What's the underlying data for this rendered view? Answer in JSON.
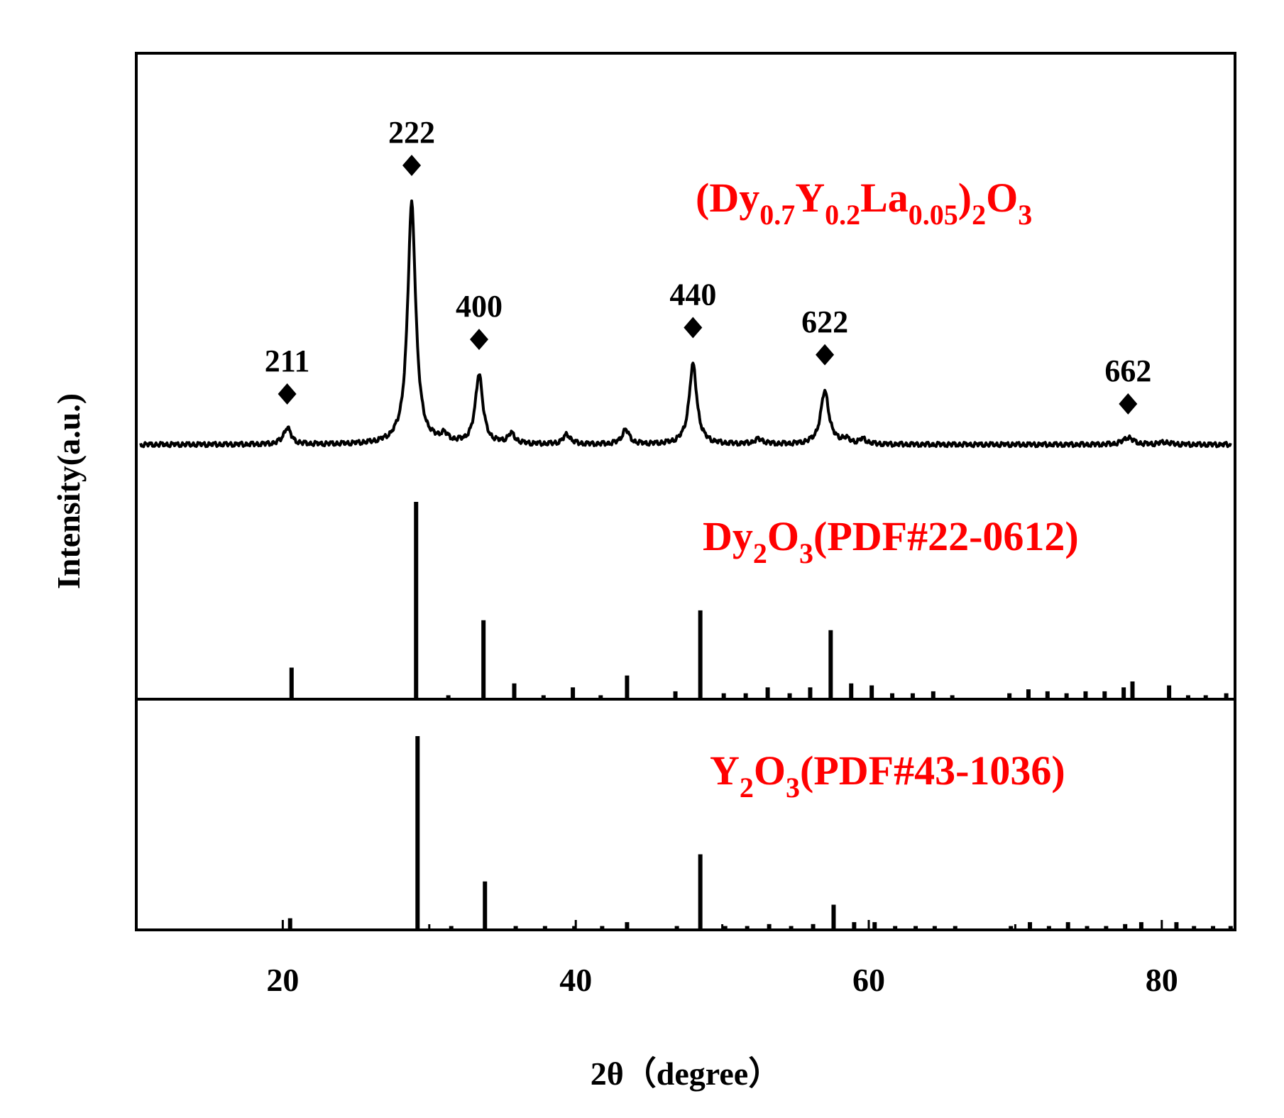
{
  "chart_data": {
    "type": "line",
    "xlabel": "2θ（degree）",
    "ylabel": "Intensity(a.u.)",
    "xlim": [
      10,
      85
    ],
    "xticks": [
      20,
      40,
      60,
      80
    ],
    "tick_labels": [
      "20",
      "40",
      "60",
      "80"
    ],
    "label_color": "#ff0000",
    "line_color": "#000000",
    "panels": [
      {
        "name": "measured",
        "label": {
          "base": "(Dy",
          "parts": [
            [
              "0.7",
              "sub"
            ],
            [
              "Y",
              "base"
            ],
            [
              "0.2",
              "sub"
            ],
            [
              "La",
              "base"
            ],
            [
              "0.05",
              "sub"
            ],
            [
              ")",
              "base"
            ],
            [
              "2",
              "sub"
            ],
            [
              "O",
              "base"
            ],
            [
              "3",
              "sub"
            ]
          ]
        },
        "type": "line",
        "baseline": 0.04,
        "peaks": [
          {
            "x": 20.3,
            "h": 0.07,
            "w": 0.3
          },
          {
            "x": 28.8,
            "h": 1.0,
            "w": 0.33
          },
          {
            "x": 31.0,
            "h": 0.03,
            "w": 0.3
          },
          {
            "x": 33.4,
            "h": 0.29,
            "w": 0.3
          },
          {
            "x": 35.6,
            "h": 0.04,
            "w": 0.3
          },
          {
            "x": 39.4,
            "h": 0.04,
            "w": 0.3
          },
          {
            "x": 43.4,
            "h": 0.06,
            "w": 0.3
          },
          {
            "x": 48.0,
            "h": 0.33,
            "w": 0.32
          },
          {
            "x": 52.5,
            "h": 0.02,
            "w": 0.4
          },
          {
            "x": 57.0,
            "h": 0.22,
            "w": 0.34
          },
          {
            "x": 58.4,
            "h": 0.02,
            "w": 0.3
          },
          {
            "x": 59.6,
            "h": 0.02,
            "w": 0.3
          },
          {
            "x": 77.7,
            "h": 0.03,
            "w": 0.4
          },
          {
            "x": 80.2,
            "h": 0.01,
            "w": 0.4
          }
        ],
        "annotations": [
          {
            "x": 20.3,
            "label": "211"
          },
          {
            "x": 28.8,
            "label": "222"
          },
          {
            "x": 33.4,
            "label": "400"
          },
          {
            "x": 48.0,
            "label": "440"
          },
          {
            "x": 57.0,
            "label": "622"
          },
          {
            "x": 77.7,
            "label": "662"
          }
        ]
      },
      {
        "name": "Dy2O3 reference",
        "label": {
          "base": "Dy",
          "parts": [
            [
              "2",
              "sub"
            ],
            [
              "O",
              "base"
            ],
            [
              "3",
              "sub"
            ],
            [
              "(PDF#22-0612)",
              "base"
            ]
          ]
        },
        "type": "stick",
        "sticks": [
          [
            20.6,
            0.16
          ],
          [
            29.1,
            1.0
          ],
          [
            31.3,
            0.02
          ],
          [
            33.7,
            0.4
          ],
          [
            35.8,
            0.08
          ],
          [
            37.8,
            0.02
          ],
          [
            39.8,
            0.06
          ],
          [
            41.7,
            0.02
          ],
          [
            43.5,
            0.12
          ],
          [
            46.8,
            0.04
          ],
          [
            48.5,
            0.45
          ],
          [
            50.1,
            0.03
          ],
          [
            51.6,
            0.03
          ],
          [
            53.1,
            0.06
          ],
          [
            54.6,
            0.03
          ],
          [
            56.0,
            0.06
          ],
          [
            57.4,
            0.35
          ],
          [
            58.8,
            0.08
          ],
          [
            60.2,
            0.07
          ],
          [
            61.6,
            0.03
          ],
          [
            63.0,
            0.03
          ],
          [
            64.4,
            0.04
          ],
          [
            65.7,
            0.02
          ],
          [
            69.6,
            0.03
          ],
          [
            70.9,
            0.05
          ],
          [
            72.2,
            0.04
          ],
          [
            73.5,
            0.03
          ],
          [
            74.8,
            0.04
          ],
          [
            76.1,
            0.04
          ],
          [
            77.4,
            0.06
          ],
          [
            78.0,
            0.09
          ],
          [
            80.5,
            0.07
          ],
          [
            81.8,
            0.02
          ],
          [
            83.0,
            0.02
          ],
          [
            84.4,
            0.03
          ]
        ]
      },
      {
        "name": "Y2O3 reference",
        "label": {
          "base": "Y",
          "parts": [
            [
              "2",
              "sub"
            ],
            [
              "O",
              "base"
            ],
            [
              "3",
              "sub"
            ],
            [
              "(PDF#43-1036)",
              "base"
            ]
          ]
        },
        "type": "stick",
        "sticks": [
          [
            20.5,
            0.06
          ],
          [
            29.2,
            1.0
          ],
          [
            31.5,
            0.02
          ],
          [
            33.8,
            0.25
          ],
          [
            35.9,
            0.02
          ],
          [
            37.9,
            0.02
          ],
          [
            39.9,
            0.02
          ],
          [
            41.8,
            0.02
          ],
          [
            43.5,
            0.04
          ],
          [
            46.9,
            0.02
          ],
          [
            48.5,
            0.39
          ],
          [
            50.2,
            0.02
          ],
          [
            51.7,
            0.02
          ],
          [
            53.2,
            0.03
          ],
          [
            54.7,
            0.02
          ],
          [
            56.2,
            0.03
          ],
          [
            57.6,
            0.13
          ],
          [
            59.0,
            0.04
          ],
          [
            60.4,
            0.04
          ],
          [
            61.8,
            0.02
          ],
          [
            63.2,
            0.02
          ],
          [
            64.5,
            0.02
          ],
          [
            65.9,
            0.02
          ],
          [
            69.7,
            0.02
          ],
          [
            71.0,
            0.04
          ],
          [
            72.3,
            0.02
          ],
          [
            73.6,
            0.04
          ],
          [
            74.9,
            0.02
          ],
          [
            76.2,
            0.02
          ],
          [
            77.5,
            0.03
          ],
          [
            78.6,
            0.04
          ],
          [
            81.0,
            0.04
          ],
          [
            82.2,
            0.02
          ],
          [
            83.5,
            0.02
          ],
          [
            84.7,
            0.02
          ]
        ]
      }
    ]
  }
}
